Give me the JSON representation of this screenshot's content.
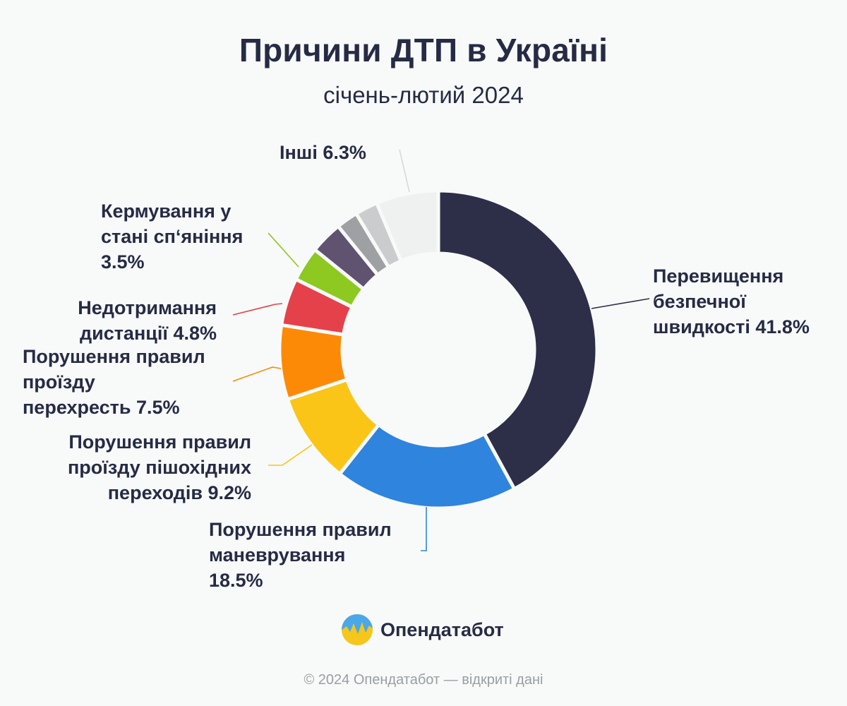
{
  "chart_data": {
    "type": "pie",
    "title": "Причини ДТП в Україні",
    "subtitle": "січень-лютий 2024",
    "slices": [
      {
        "label_lines": [
          "Перевищення",
          "безпечної",
          "швидкості 41.8%"
        ],
        "value": 41.8,
        "color": "#2d2e48"
      },
      {
        "label_lines": [
          "Порушення правил",
          "маневрування",
          "18.5%"
        ],
        "value": 18.5,
        "color": "#2f84dd"
      },
      {
        "label_lines": [
          "Порушення правил",
          "проїзду пішохідних",
          "переходів 9.2%"
        ],
        "value": 9.2,
        "color": "#fac516"
      },
      {
        "label_lines": [
          "Порушення правил",
          "проїзду",
          "перехресть 7.5%"
        ],
        "value": 7.5,
        "color": "#fc8a07"
      },
      {
        "label_lines": [
          "Недотримання",
          "дистанції 4.8%"
        ],
        "value": 4.8,
        "color": "#e5414b"
      },
      {
        "label_lines": [
          "Кермування у",
          "стані сп‘яніння",
          "3.5%"
        ],
        "value": 3.5,
        "color": "#8dc920"
      },
      {
        "label_lines": [],
        "value": 3.3,
        "color": "#5f5370"
      },
      {
        "label_lines": [],
        "value": 2.2,
        "color": "#9fa0a3"
      },
      {
        "label_lines": [],
        "value": 2.3,
        "color": "#cbcccd"
      },
      {
        "label_lines": [
          "Інші 6.3%"
        ],
        "value": 6.3,
        "color": "#eff0f0"
      }
    ],
    "hole": "donut",
    "legend": "none"
  },
  "brand": {
    "name": "Опендатабот",
    "icon": "opendatabot-logo-icon",
    "copyright": "© 2024 Опендатабот — відкриті дані"
  }
}
